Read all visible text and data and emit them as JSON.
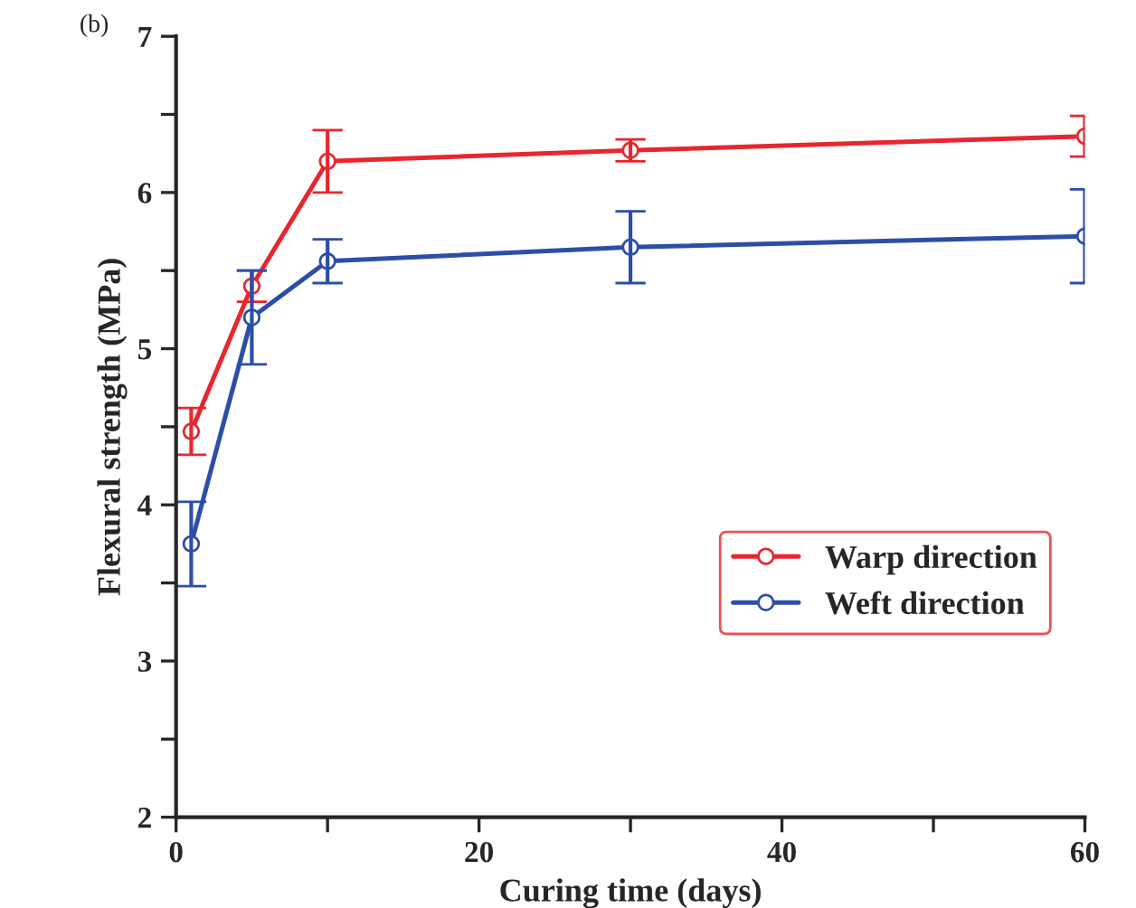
{
  "chart_data": {
    "type": "line",
    "xlabel": "Curing time (days)",
    "ylabel": "Flexural strength (MPa)",
    "annotations": [
      "(b)"
    ],
    "x": [
      1,
      5,
      10,
      30,
      60
    ],
    "series": [
      {
        "name": "Warp direction",
        "color": "#e8262f",
        "values": [
          4.47,
          5.4,
          6.2,
          6.27,
          6.36
        ],
        "errors": [
          0.15,
          0.1,
          0.2,
          0.07,
          0.13
        ]
      },
      {
        "name": "Weft direction",
        "color": "#2c4ea8",
        "values": [
          3.75,
          5.2,
          5.56,
          5.65,
          5.72
        ],
        "errors": [
          0.27,
          0.3,
          0.14,
          0.23,
          0.3
        ]
      }
    ],
    "xlim": [
      0,
      60
    ],
    "xticks": [
      0,
      {
        "value": 10,
        "label": null
      },
      20,
      {
        "value": 30,
        "label": null
      },
      40,
      {
        "value": 50,
        "label": null
      },
      60
    ],
    "ylim": [
      2,
      7
    ],
    "yticks": [
      2,
      {
        "value": 2.5,
        "label": null
      },
      3,
      {
        "value": 3.5,
        "label": null
      },
      4,
      {
        "value": 4.5,
        "label": null
      },
      5,
      {
        "value": 5.5,
        "label": null
      },
      6,
      {
        "value": 6.5,
        "label": null
      },
      7
    ],
    "grid": false,
    "legend": "right",
    "marker": "circle",
    "line_style": "solid"
  }
}
